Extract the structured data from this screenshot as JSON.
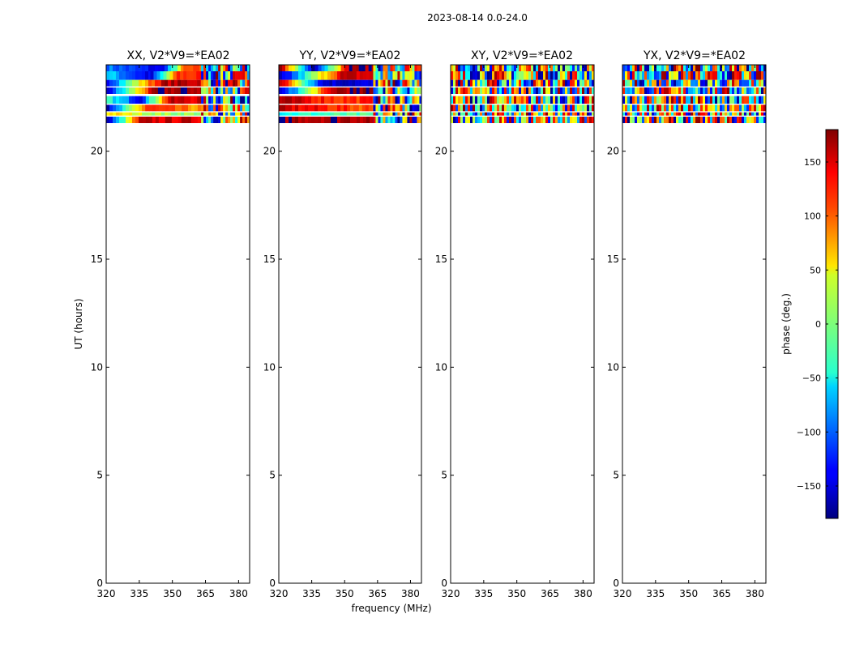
{
  "figure_title": "2023-08-14 0.0-24.0",
  "chart_data": {
    "type": "heatmap",
    "title": "2023-08-14 0.0-24.0",
    "xlabel": "frequency (MHz)",
    "ylabel": "UT (hours)",
    "xlim": [
      320,
      385
    ],
    "ylim": [
      0,
      24
    ],
    "x_ticks": [
      320,
      335,
      350,
      365,
      380
    ],
    "y_ticks": [
      0,
      5,
      10,
      15,
      20
    ],
    "panels": [
      {
        "title": "XX, V2*V9=*EA02",
        "rows": [
          {
            "t0": 23.7,
            "t1": 24.0,
            "pattern": [
              [
                320,
                -90
              ],
              [
                345,
                -150
              ],
              [
                355,
                100
              ],
              [
                363,
                "noise"
              ]
            ]
          },
          {
            "t0": 23.3,
            "t1": 23.7,
            "pattern": [
              [
                320,
                -60
              ],
              [
                340,
                -150
              ],
              [
                352,
                120
              ],
              [
                363,
                "noise"
              ]
            ]
          },
          {
            "t0": 23.0,
            "t1": 23.3,
            "pattern": [
              [
                320,
                -120
              ],
              [
                345,
                160
              ],
              [
                363,
                "noise"
              ]
            ]
          },
          {
            "t0": 22.65,
            "t1": 22.95,
            "pattern": [
              [
                320,
                -150
              ],
              [
                342,
                170
              ],
              [
                363,
                "noise"
              ]
            ]
          },
          {
            "t0": 22.2,
            "t1": 22.55,
            "pattern": [
              [
                320,
                -30
              ],
              [
                335,
                -130
              ],
              [
                348,
                150
              ],
              [
                363,
                "noise"
              ]
            ]
          },
          {
            "t0": 21.85,
            "t1": 22.15,
            "pattern": [
              [
                320,
                -160
              ],
              [
                338,
                120
              ],
              [
                360,
                80
              ],
              [
                363,
                "noise"
              ]
            ]
          },
          {
            "t0": 21.65,
            "t1": 21.8,
            "pattern": [
              [
                320,
                60
              ],
              [
                345,
                10
              ],
              [
                363,
                "noise"
              ]
            ]
          },
          {
            "t0": 21.3,
            "t1": 21.6,
            "pattern": [
              [
                320,
                -170
              ],
              [
                335,
                150
              ],
              [
                363,
                "noise"
              ]
            ]
          }
        ]
      },
      {
        "title": "YY, V2*V9=*EA02",
        "rows": [
          {
            "t0": 23.7,
            "t1": 24.0,
            "pattern": [
              [
                320,
                170
              ],
              [
                335,
                -160
              ],
              [
                352,
                170
              ],
              [
                363,
                "noise"
              ]
            ]
          },
          {
            "t0": 23.3,
            "t1": 23.7,
            "pattern": [
              [
                320,
                -170
              ],
              [
                348,
                150
              ],
              [
                363,
                "noise"
              ]
            ]
          },
          {
            "t0": 23.0,
            "t1": 23.3,
            "pattern": [
              [
                320,
                160
              ],
              [
                340,
                -150
              ],
              [
                363,
                "noise"
              ]
            ]
          },
          {
            "t0": 22.65,
            "t1": 22.95,
            "pattern": [
              [
                320,
                -160
              ],
              [
                345,
                170
              ],
              [
                363,
                "noise"
              ]
            ]
          },
          {
            "t0": 22.2,
            "t1": 22.55,
            "pattern": [
              [
                320,
                160
              ],
              [
                345,
                120
              ],
              [
                363,
                "noise"
              ]
            ]
          },
          {
            "t0": 21.85,
            "t1": 22.15,
            "pattern": [
              [
                320,
                150
              ],
              [
                355,
                110
              ],
              [
                363,
                "noise"
              ]
            ]
          },
          {
            "t0": 21.65,
            "t1": 21.8,
            "pattern": [
              [
                320,
                -40
              ],
              [
                345,
                -20
              ],
              [
                363,
                "noise"
              ]
            ]
          },
          {
            "t0": 21.3,
            "t1": 21.6,
            "pattern": [
              [
                320,
                170
              ],
              [
                363,
                "noise"
              ]
            ]
          }
        ]
      },
      {
        "title": "XY, V2*V9=*EA02",
        "rows": [
          {
            "t0": 23.7,
            "t1": 24.0,
            "pattern": [
              [
                320,
                "noise"
              ]
            ]
          },
          {
            "t0": 23.3,
            "t1": 23.7,
            "pattern": [
              [
                320,
                "noise"
              ]
            ]
          },
          {
            "t0": 23.0,
            "t1": 23.3,
            "pattern": [
              [
                320,
                "noise"
              ]
            ]
          },
          {
            "t0": 22.65,
            "t1": 22.95,
            "pattern": [
              [
                320,
                "noise"
              ]
            ]
          },
          {
            "t0": 22.2,
            "t1": 22.55,
            "pattern": [
              [
                320,
                "noise"
              ]
            ]
          },
          {
            "t0": 21.85,
            "t1": 22.15,
            "pattern": [
              [
                320,
                "noise"
              ]
            ]
          },
          {
            "t0": 21.65,
            "t1": 21.8,
            "pattern": [
              [
                320,
                "noise"
              ]
            ]
          },
          {
            "t0": 21.3,
            "t1": 21.6,
            "pattern": [
              [
                320,
                "noise"
              ]
            ]
          }
        ]
      },
      {
        "title": "YX, V2*V9=*EA02",
        "rows": [
          {
            "t0": 23.7,
            "t1": 24.0,
            "pattern": [
              [
                320,
                "noise"
              ]
            ]
          },
          {
            "t0": 23.3,
            "t1": 23.7,
            "pattern": [
              [
                320,
                "noise"
              ]
            ]
          },
          {
            "t0": 23.0,
            "t1": 23.3,
            "pattern": [
              [
                320,
                "noise"
              ]
            ]
          },
          {
            "t0": 22.65,
            "t1": 22.95,
            "pattern": [
              [
                320,
                "noise"
              ]
            ]
          },
          {
            "t0": 22.2,
            "t1": 22.55,
            "pattern": [
              [
                320,
                "noise"
              ]
            ]
          },
          {
            "t0": 21.85,
            "t1": 22.15,
            "pattern": [
              [
                320,
                "noise"
              ]
            ]
          },
          {
            "t0": 21.65,
            "t1": 21.8,
            "pattern": [
              [
                320,
                "noise"
              ]
            ]
          },
          {
            "t0": 21.3,
            "t1": 21.6,
            "pattern": [
              [
                320,
                "noise"
              ]
            ]
          }
        ]
      }
    ],
    "colorbar": {
      "label": "phase (deg.)",
      "range": [
        -180,
        180
      ],
      "ticks": [
        150,
        100,
        50,
        0,
        -50,
        -100,
        -150
      ],
      "tick_labels": [
        "150",
        "100",
        "50",
        "0",
        "−50",
        "−100",
        "−150"
      ],
      "colormap": "jet"
    }
  }
}
